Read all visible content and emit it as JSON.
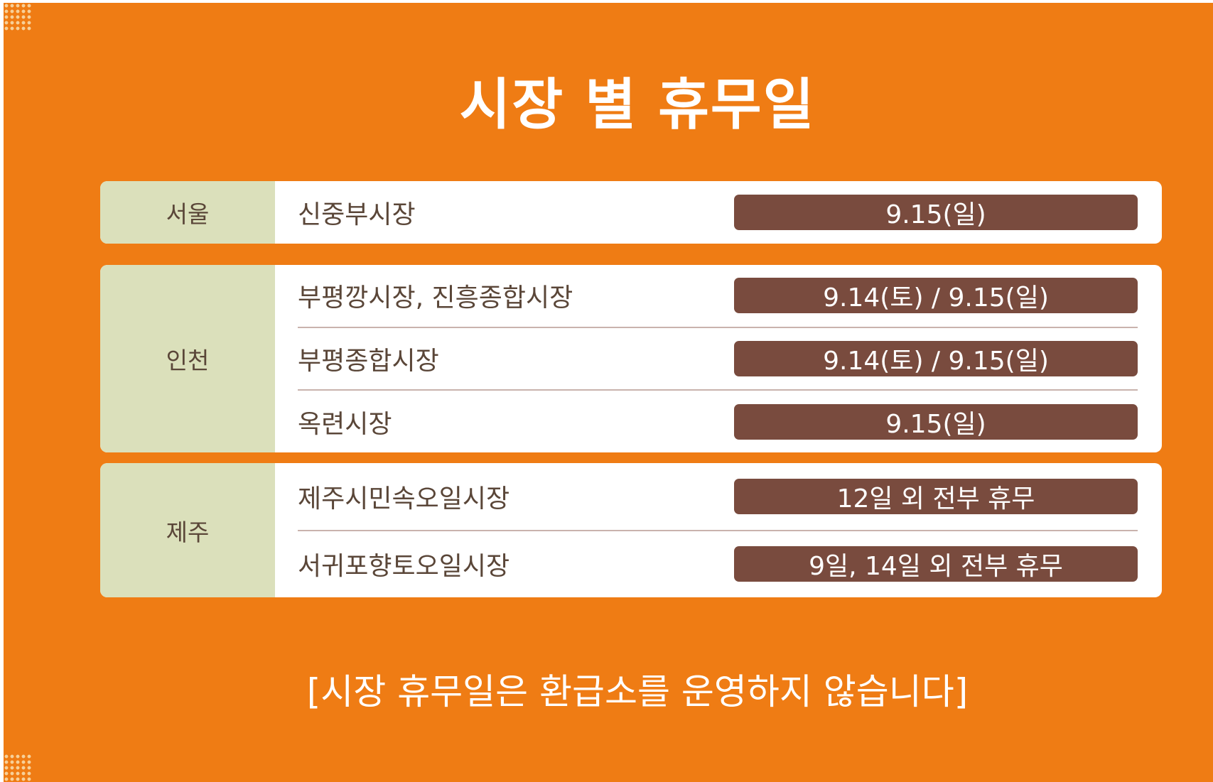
{
  "title": "시장 별 휴무일",
  "groups": [
    {
      "region": "서울",
      "markets": [
        {
          "name": "신중부시장",
          "closed": "9.15(일)"
        }
      ]
    },
    {
      "region": "인천",
      "markets": [
        {
          "name": "부평깡시장, 진흥종합시장",
          "closed": "9.14(토) / 9.15(일)"
        },
        {
          "name": "부평종합시장",
          "closed": "9.14(토) / 9.15(일)"
        },
        {
          "name": "옥련시장",
          "closed": "9.15(일)"
        }
      ]
    },
    {
      "region": "제주",
      "markets": [
        {
          "name": "제주시민속오일시장",
          "closed": "12일 외 전부 휴무"
        },
        {
          "name": "서귀포향토오일시장",
          "closed": "9일, 14일 외 전부 휴무"
        }
      ]
    }
  ],
  "footnote": "[시장 휴무일은 환급소를 운영하지 않습니다]",
  "colors": {
    "background": "#ef7c14",
    "region_cell": "#dbe0bb",
    "date_pill": "#794b3e",
    "text_dark": "#5a4638",
    "text_light": "#ffffff"
  }
}
